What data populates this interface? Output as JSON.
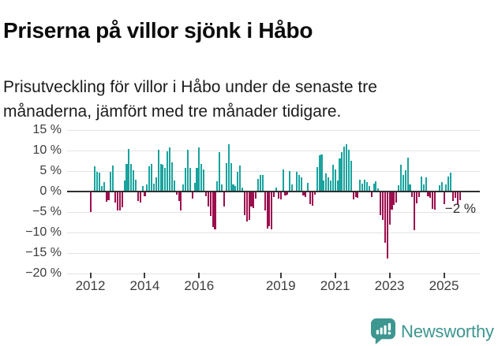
{
  "header": {
    "title": "Priserna på villor sjönk i Håbo",
    "subtitle": "Prisutveckling för villor i Håbo under de senaste tre månaderna, jämfört med tre månader tidigare."
  },
  "chart_data": {
    "type": "bar",
    "title": "Priserna på villor sjönk i Håbo",
    "subtitle": "Prisutveckling för villor i Håbo under de senaste tre månaderna, jämfört med tre månader tidigare.",
    "unit": "%",
    "frequency": "monthly",
    "x_start": "2012-01",
    "x_end": "2025-08",
    "ylim": [
      -20,
      15
    ],
    "grid": true,
    "yticks": [
      15,
      10,
      5,
      0,
      -5,
      -10,
      -15,
      -20
    ],
    "ytick_labels": [
      "15 %",
      "10 %",
      "5 %",
      "0 %",
      "−5 %",
      "−10 %",
      "−15 %",
      "−20 %"
    ],
    "xtick_labels": [
      "2012",
      "2014",
      "2016",
      "2019",
      "2021",
      "2023",
      "2025"
    ],
    "xtick_month_index": [
      0,
      24,
      48,
      84,
      108,
      132,
      156
    ],
    "values": [
      -4.8,
      0,
      5.9,
      4.7,
      4.4,
      1.2,
      2.2,
      -2.3,
      -1.9,
      4.7,
      6.2,
      -2.5,
      -4.5,
      -4.4,
      -3.6,
      2.5,
      6.5,
      10.2,
      6.5,
      5.0,
      2.6,
      -2.1,
      -2.5,
      1.2,
      -0.9,
      1.5,
      6.0,
      6.5,
      1.8,
      3.3,
      10.0,
      6.5,
      6.3,
      5.5,
      9.7,
      10.6,
      7.0,
      2.5,
      -0.5,
      -2.2,
      -4.4,
      1.5,
      5.5,
      10.0,
      5.5,
      -1.5,
      2.0,
      5.5,
      10.5,
      6.5,
      5.2,
      -1.0,
      -3.5,
      -5.8,
      -8.5,
      -9.0,
      2.3,
      9.4,
      1.6,
      -3.4,
      6.8,
      11.3,
      6.8,
      1.5,
      1.2,
      4.7,
      6.1,
      0.8,
      -5.6,
      -7.2,
      -6.8,
      -3.5,
      -3.8,
      -1.5,
      2.8,
      3.9,
      3.9,
      -4.5,
      -8.8,
      -8.2,
      -9.0,
      -1.2,
      0.8,
      -1.5,
      -1.8,
      5.2,
      -0.8,
      -0.5,
      4.9,
      1.5,
      0,
      4.6,
      3.9,
      3.2,
      -0.7,
      -1.2,
      1.9,
      -2.8,
      -3.3,
      -0.6,
      5.7,
      8.7,
      8.9,
      2.5,
      4.2,
      3.2,
      2.5,
      6.4,
      5.2,
      2.5,
      7.8,
      9.5,
      10.8,
      11.3,
      10.0,
      7.3,
      -1.7,
      -1.2,
      -1.4,
      2.7,
      1.8,
      2.7,
      2.2,
      1.2,
      -1.2,
      1.7,
      2.3,
      0.5,
      -5.5,
      -6.8,
      -12.3,
      -16.2,
      -7.8,
      -4.3,
      -3.0,
      -2.5,
      1.3,
      6.3,
      3.9,
      5.0,
      8.0,
      1.5,
      -1.2,
      -9.2,
      -2.7,
      -1.2,
      3.5,
      1.5,
      3.2,
      -1.0,
      -1.3,
      -4.0,
      -4.2,
      0,
      1.4,
      2.2,
      -2.8,
      1.5,
      3.5,
      4.4,
      -2.1,
      -1.3,
      -3.1,
      -2.0
    ],
    "annotation": {
      "text": "−2 %",
      "value": -2,
      "position": "last-bar"
    },
    "colors": {
      "positive": "#1aa39e",
      "negative": "#9c0e4e"
    }
  },
  "footer": {
    "brand": "Newsworthy",
    "brand_color": "#3d9690",
    "logo_icon": "bar-chart-speech-bubble-icon"
  }
}
